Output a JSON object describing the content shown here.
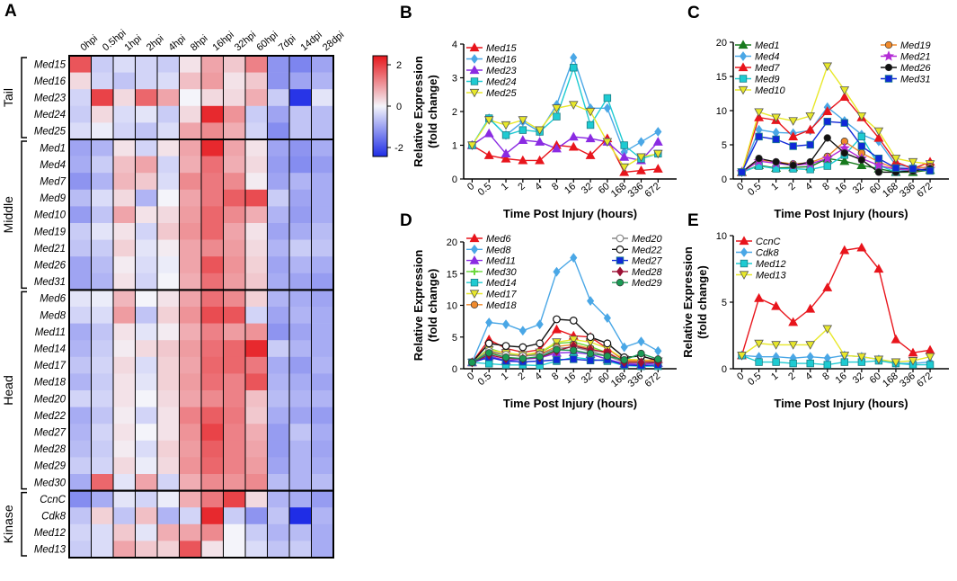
{
  "panel_letters": {
    "A": "A",
    "B": "B",
    "C": "C",
    "D": "D",
    "E": "E"
  },
  "heatmap": {
    "columns": [
      "0hpi",
      "0.5hpi",
      "1hpi",
      "2hpi",
      "4hpi",
      "8hpi",
      "16hpi",
      "32hpi",
      "60hpi",
      "7dpi",
      "14dpi",
      "28dpi"
    ],
    "groups": [
      {
        "name": "Tail",
        "genes": [
          "Med15",
          "Med16",
          "Med23",
          "Med24",
          "Med25"
        ]
      },
      {
        "name": "Middle",
        "genes": [
          "Med1",
          "Med4",
          "Med7",
          "Med9",
          "Med10",
          "Med19",
          "Med21",
          "Med26",
          "Med31"
        ]
      },
      {
        "name": "Head",
        "genes": [
          "Med6",
          "Med8",
          "Med11",
          "Med14",
          "Med17",
          "Med18",
          "Med20",
          "Med22",
          "Med27",
          "Med28",
          "Med29",
          "Med30"
        ]
      },
      {
        "name": "Kinase",
        "genes": [
          "CcnC",
          "Cdk8",
          "Med12",
          "Med13"
        ]
      }
    ],
    "scale_labels": [
      "2",
      "0",
      "-2"
    ],
    "colors": {
      "low": "#1f2de6",
      "mid": "#f4f4fa",
      "high": "#e6171c"
    },
    "values": [
      [
        1.8,
        -0.5,
        -0.3,
        -0.4,
        -0.5,
        0.2,
        0.9,
        0.5,
        1.3,
        -1.2,
        -1.4,
        -1.0
      ],
      [
        0.3,
        -0.4,
        -0.6,
        -0.4,
        -0.3,
        0.6,
        1.0,
        0.2,
        0.5,
        -1.2,
        -1.0,
        -0.8
      ],
      [
        -0.4,
        2.0,
        0.3,
        1.6,
        0.9,
        0.0,
        0.3,
        0.3,
        0.8,
        -0.5,
        -2.4,
        -0.2
      ],
      [
        -0.5,
        0.3,
        -0.3,
        -0.2,
        -0.5,
        0.3,
        2.3,
        1.1,
        -0.5,
        -1.0,
        -0.6,
        -0.7
      ],
      [
        -0.3,
        -0.1,
        -0.4,
        -0.6,
        -0.3,
        0.9,
        1.2,
        0.8,
        -0.4,
        -1.3,
        -0.6,
        -0.7
      ],
      [
        -1.0,
        -0.8,
        0.2,
        -0.4,
        0.2,
        0.9,
        2.3,
        0.9,
        0.2,
        -1.0,
        -1.2,
        -0.9
      ],
      [
        -0.9,
        -0.5,
        0.6,
        0.9,
        -0.4,
        0.8,
        1.5,
        0.8,
        0.3,
        -1.1,
        -1.3,
        -1.1
      ],
      [
        -1.2,
        -0.8,
        0.7,
        0.5,
        -0.3,
        1.2,
        1.4,
        1.2,
        0.1,
        -1.0,
        -0.8,
        -0.9
      ],
      [
        -0.7,
        -0.3,
        0.3,
        -0.8,
        0.0,
        0.9,
        1.4,
        1.7,
        1.9,
        -0.5,
        -1.0,
        -0.9
      ],
      [
        -1.1,
        -0.6,
        0.9,
        0.2,
        0.3,
        1.0,
        1.6,
        1.2,
        0.8,
        -0.8,
        -1.1,
        -0.9
      ],
      [
        -0.5,
        -0.2,
        0.2,
        -0.4,
        0.5,
        1.1,
        1.6,
        0.9,
        0.2,
        -1.0,
        -0.9,
        -0.7
      ],
      [
        -0.6,
        -0.5,
        0.4,
        -0.2,
        0.1,
        0.9,
        1.2,
        1.0,
        0.3,
        -0.8,
        -0.5,
        -0.6
      ],
      [
        -1.0,
        -0.7,
        0.1,
        -0.3,
        -0.1,
        0.9,
        1.8,
        1.1,
        0.4,
        -1.0,
        -0.8,
        -0.9
      ],
      [
        -1.0,
        -0.8,
        0.2,
        -0.4,
        0.0,
        0.8,
        1.5,
        1.0,
        0.5,
        -0.9,
        -1.0,
        -1.1
      ],
      [
        -0.2,
        -0.1,
        0.7,
        0.0,
        0.2,
        0.9,
        1.5,
        1.2,
        0.4,
        -0.8,
        -0.9,
        -1.0
      ],
      [
        -0.4,
        -0.3,
        1.0,
        -0.6,
        0.4,
        1.1,
        1.9,
        1.8,
        -0.4,
        -1.0,
        -0.8,
        -0.9
      ],
      [
        -0.9,
        -0.6,
        0.2,
        -0.2,
        0.1,
        0.8,
        1.3,
        1.0,
        1.1,
        -1.2,
        -1.0,
        -0.9
      ],
      [
        -0.8,
        -0.5,
        0.1,
        0.3,
        0.5,
        1.0,
        1.5,
        1.6,
        2.3,
        -0.5,
        -0.8,
        -0.9
      ],
      [
        -0.6,
        -0.4,
        0.3,
        -0.3,
        0.4,
        0.9,
        1.6,
        1.6,
        1.4,
        -0.9,
        -1.1,
        -0.8
      ],
      [
        -0.8,
        -0.5,
        0.2,
        -0.2,
        0.4,
        1.0,
        1.5,
        1.3,
        1.8,
        -0.8,
        -0.9,
        -1.0
      ],
      [
        -0.4,
        -0.4,
        0.2,
        0.0,
        0.3,
        0.9,
        1.2,
        1.3,
        0.6,
        -0.7,
        -0.8,
        -0.8
      ],
      [
        -0.9,
        -0.6,
        0.1,
        -0.4,
        0.2,
        1.3,
        1.7,
        1.4,
        0.5,
        -0.9,
        -1.0,
        -1.1
      ],
      [
        -0.8,
        -0.4,
        0.2,
        0.0,
        0.2,
        1.1,
        2.0,
        1.3,
        0.8,
        -1.1,
        -0.6,
        -0.9
      ],
      [
        -0.7,
        -0.5,
        0.1,
        -0.3,
        0.4,
        1.0,
        1.7,
        1.3,
        0.9,
        -1.1,
        -0.8,
        -1.0
      ],
      [
        -0.5,
        -0.4,
        0.3,
        -0.1,
        0.3,
        1.1,
        1.6,
        1.3,
        1.0,
        -1.0,
        -0.8,
        -0.9
      ],
      [
        -0.9,
        1.6,
        -0.2,
        0.9,
        -0.4,
        0.8,
        1.2,
        1.1,
        1.2,
        -0.7,
        -0.8,
        -0.7
      ],
      [
        -1.3,
        -0.9,
        -0.2,
        -0.4,
        -0.1,
        0.8,
        1.4,
        2.0,
        0.3,
        -0.8,
        -0.9,
        -1.1
      ],
      [
        -0.6,
        0.4,
        -0.6,
        0.6,
        -0.8,
        -0.4,
        2.3,
        -0.5,
        -1.2,
        -0.6,
        -2.6,
        -0.8
      ],
      [
        -0.4,
        -0.3,
        0.5,
        -0.2,
        0.8,
        0.9,
        1.2,
        0.0,
        -0.5,
        -0.8,
        -0.7,
        -0.9
      ],
      [
        -0.5,
        -0.3,
        0.9,
        0.5,
        0.4,
        1.8,
        0.2,
        0.0,
        -0.3,
        -0.6,
        -0.5,
        -0.9
      ]
    ]
  },
  "chart_data": [
    {
      "panel": "B",
      "type": "line",
      "categories": [
        "0",
        "0.5",
        "1",
        "2",
        "4",
        "8",
        "16",
        "32",
        "60",
        "168",
        "336",
        "672"
      ],
      "xlabel": "Time Post Injury (hours)",
      "ylabel": "Relative Expression (fold change)",
      "ylabel_lines": [
        "Relative Expression",
        "(fold change)"
      ],
      "ylim": [
        0,
        4
      ],
      "yticks": [
        "0",
        "1",
        "2",
        "3",
        "4"
      ],
      "legend_cols": 1,
      "series": [
        {
          "name": "Med15",
          "color": "#e8151c",
          "marker": "tri",
          "values": [
            1.0,
            0.7,
            0.6,
            0.55,
            0.55,
            1.0,
            0.95,
            0.7,
            1.2,
            0.2,
            0.25,
            0.3
          ]
        },
        {
          "name": "Med16",
          "color": "#4aa7e6",
          "marker": "diamond",
          "values": [
            1.0,
            1.8,
            1.3,
            1.7,
            1.4,
            2.2,
            3.6,
            2.1,
            2.1,
            0.8,
            1.1,
            1.4
          ]
        },
        {
          "name": "Med23",
          "color": "#8a2be2",
          "marker": "tri",
          "values": [
            1.0,
            1.35,
            0.75,
            1.15,
            1.1,
            0.9,
            1.25,
            1.2,
            1.1,
            0.65,
            0.55,
            1.1
          ]
        },
        {
          "name": "Med24",
          "color": "#1ecbd2",
          "marker": "square",
          "values": [
            1.0,
            1.8,
            1.3,
            1.45,
            1.4,
            1.85,
            3.3,
            1.6,
            2.4,
            1.0,
            0.6,
            0.75
          ]
        },
        {
          "name": "Med25",
          "color": "#e8e82a",
          "marker": "tridown",
          "values": [
            1.0,
            1.75,
            1.6,
            1.75,
            1.45,
            2.1,
            2.2,
            2.0,
            1.1,
            0.35,
            0.65,
            0.75
          ]
        }
      ]
    },
    {
      "panel": "C",
      "type": "line",
      "categories": [
        "0",
        "0.5",
        "1",
        "2",
        "4",
        "8",
        "16",
        "32",
        "60",
        "168",
        "336",
        "672"
      ],
      "xlabel": "Time Post Injury (hours)",
      "ylabel": "",
      "ylabel_lines": [],
      "ylim": [
        0,
        20
      ],
      "yticks": [
        "0",
        "5",
        "10",
        "15",
        "20"
      ],
      "legend_cols": 2,
      "series": [
        {
          "name": "Med1",
          "color": "#187a1e",
          "marker": "tri",
          "values": [
            1.0,
            2.0,
            1.6,
            1.7,
            1.8,
            3.0,
            2.6,
            2.0,
            1.5,
            1.0,
            1.0,
            1.3
          ]
        },
        {
          "name": "Med4",
          "color": "#4aa7e6",
          "marker": "diamond",
          "values": [
            1.0,
            7.2,
            6.8,
            6.7,
            7.1,
            10.5,
            8.5,
            6.5,
            5.5,
            2.0,
            1.8,
            1.6
          ]
        },
        {
          "name": "Med7",
          "color": "#e8151c",
          "marker": "tri",
          "values": [
            1.0,
            9.0,
            8.6,
            6.2,
            7.2,
            9.9,
            12.0,
            9.0,
            6.0,
            2.5,
            1.5,
            2.5
          ]
        },
        {
          "name": "Med9",
          "color": "#1ecbd2",
          "marker": "square",
          "values": [
            1.0,
            1.9,
            1.5,
            1.5,
            1.4,
            1.9,
            3.5,
            6.2,
            2.0,
            1.0,
            1.5,
            1.2
          ]
        },
        {
          "name": "Med10",
          "color": "#e8e82a",
          "marker": "tridown",
          "values": [
            1.0,
            9.8,
            9.0,
            8.5,
            9.2,
            16.5,
            13.0,
            9.2,
            7.0,
            3.0,
            2.5,
            2.2
          ]
        },
        {
          "name": "Med19",
          "color": "#f08a2c",
          "marker": "circle",
          "values": [
            1.0,
            2.8,
            2.5,
            2.2,
            2.4,
            3.3,
            5.5,
            3.8,
            2.5,
            1.5,
            1.5,
            1.8
          ]
        },
        {
          "name": "Med21",
          "color": "#b32cd6",
          "marker": "star",
          "values": [
            1.0,
            2.6,
            2.3,
            2.0,
            2.2,
            3.0,
            4.5,
            3.0,
            2.0,
            1.4,
            1.3,
            1.5
          ]
        },
        {
          "name": "Med26",
          "color": "#111111",
          "marker": "circle",
          "values": [
            1.0,
            3.0,
            2.5,
            2.0,
            2.5,
            6.0,
            3.8,
            2.8,
            1.0,
            1.0,
            1.2,
            1.5
          ]
        },
        {
          "name": "Med31",
          "color": "#1028d8",
          "marker": "square",
          "values": [
            1.0,
            6.2,
            5.8,
            4.8,
            5.0,
            8.4,
            8.2,
            4.8,
            3.0,
            1.6,
            1.5,
            1.2
          ]
        }
      ]
    },
    {
      "panel": "D",
      "type": "line",
      "categories": [
        "0",
        "0.5",
        "1",
        "2",
        "4",
        "8",
        "16",
        "32",
        "60",
        "168",
        "336",
        "672"
      ],
      "xlabel": "Time Post Injury (hours)",
      "ylabel": "Relative Expression (fold change)",
      "ylabel_lines": [
        "Relative Expression",
        "(fold change)"
      ],
      "ylim": [
        0,
        20
      ],
      "yticks": [
        "0",
        "5",
        "10",
        "15",
        "20"
      ],
      "legend_cols": 2,
      "series": [
        {
          "name": "Med6",
          "color": "#e8151c",
          "marker": "tri",
          "values": [
            1.0,
            4.6,
            3.2,
            2.6,
            3.0,
            6.2,
            5.2,
            5.0,
            3.2,
            1.3,
            1.2,
            1.5
          ]
        },
        {
          "name": "Med8",
          "color": "#4aa7e6",
          "marker": "diamond",
          "values": [
            1.0,
            7.3,
            7.0,
            6.0,
            7.0,
            15.3,
            17.5,
            10.7,
            8.0,
            3.4,
            4.3,
            2.8
          ]
        },
        {
          "name": "Med11",
          "color": "#8a2be2",
          "marker": "tri",
          "values": [
            1.0,
            2.0,
            1.3,
            1.5,
            1.7,
            2.5,
            2.6,
            2.3,
            1.5,
            0.8,
            0.7,
            0.9
          ]
        },
        {
          "name": "Med30",
          "color": "#6ad83a",
          "marker": "plus",
          "values": [
            1.0,
            3.2,
            2.4,
            2.0,
            2.5,
            4.0,
            4.2,
            3.5,
            2.5,
            1.2,
            1.0,
            1.2
          ]
        },
        {
          "name": "Med14",
          "color": "#1ecbd2",
          "marker": "square",
          "values": [
            1.0,
            0.8,
            0.6,
            0.6,
            0.5,
            1.2,
            1.8,
            1.5,
            1.2,
            0.5,
            0.4,
            0.4
          ]
        },
        {
          "name": "Med17",
          "color": "#e8e82a",
          "marker": "tridown",
          "values": [
            1.0,
            3.0,
            2.5,
            2.2,
            2.6,
            4.2,
            4.6,
            4.2,
            3.2,
            1.5,
            1.4,
            1.2
          ]
        },
        {
          "name": "Med18",
          "color": "#f08a2c",
          "marker": "circle",
          "values": [
            1.0,
            2.6,
            2.2,
            2.0,
            2.3,
            3.5,
            3.8,
            3.2,
            2.4,
            1.2,
            1.2,
            1.3
          ]
        },
        {
          "name": "Med20",
          "color": "#888888",
          "marker": "circleo",
          "values": [
            1.0,
            2.8,
            2.2,
            2.0,
            2.2,
            3.2,
            3.4,
            2.8,
            2.0,
            1.0,
            1.0,
            1.0
          ]
        },
        {
          "name": "Med22",
          "color": "#111111",
          "marker": "circleo",
          "values": [
            1.0,
            4.0,
            3.6,
            3.4,
            4.0,
            7.8,
            7.6,
            5.0,
            4.0,
            1.8,
            2.0,
            1.3
          ]
        },
        {
          "name": "Med27",
          "color": "#1028d8",
          "marker": "square",
          "values": [
            1.0,
            1.8,
            1.2,
            1.1,
            1.2,
            1.4,
            1.5,
            1.3,
            1.4,
            0.6,
            0.5,
            0.6
          ]
        },
        {
          "name": "Med28",
          "color": "#9c1035",
          "marker": "diamond",
          "values": [
            1.0,
            2.2,
            1.6,
            1.6,
            1.8,
            2.8,
            3.6,
            3.0,
            2.6,
            1.0,
            1.0,
            1.0
          ]
        },
        {
          "name": "Med29",
          "color": "#1b9a55",
          "marker": "circle",
          "values": [
            1.0,
            2.5,
            1.8,
            1.6,
            1.9,
            3.0,
            2.9,
            2.4,
            2.0,
            1.4,
            2.4,
            1.5
          ]
        }
      ]
    },
    {
      "panel": "E",
      "type": "line",
      "categories": [
        "0",
        "0.5",
        "1",
        "2",
        "4",
        "8",
        "16",
        "32",
        "60",
        "168",
        "336",
        "672"
      ],
      "xlabel": "Time Post Injury (hours)",
      "ylabel": "Relative Expression (fold change)",
      "ylabel_lines": [
        "Relative Expression",
        "(fold change)"
      ],
      "ylim": [
        0,
        10
      ],
      "yticks": [
        "0",
        "5",
        "10"
      ],
      "legend_cols": 1,
      "series": [
        {
          "name": "CcnC",
          "color": "#e8151c",
          "marker": "tri",
          "values": [
            1.0,
            5.3,
            4.7,
            3.5,
            4.5,
            6.1,
            8.9,
            9.1,
            7.5,
            2.2,
            1.2,
            1.4
          ]
        },
        {
          "name": "Cdk8",
          "color": "#4aa7e6",
          "marker": "diamond",
          "values": [
            1.0,
            0.9,
            0.9,
            0.8,
            0.9,
            0.8,
            1.0,
            0.9,
            0.7,
            0.4,
            0.4,
            0.5
          ]
        },
        {
          "name": "Med12",
          "color": "#1ecbd2",
          "marker": "square",
          "values": [
            1.0,
            0.5,
            0.5,
            0.4,
            0.4,
            0.3,
            0.5,
            0.5,
            0.6,
            0.4,
            0.3,
            0.3
          ]
        },
        {
          "name": "Med13",
          "color": "#e8e82a",
          "marker": "tridown",
          "values": [
            1.0,
            1.9,
            1.8,
            1.8,
            1.8,
            3.0,
            1.0,
            0.9,
            0.7,
            0.5,
            0.6,
            0.9
          ]
        }
      ]
    }
  ]
}
